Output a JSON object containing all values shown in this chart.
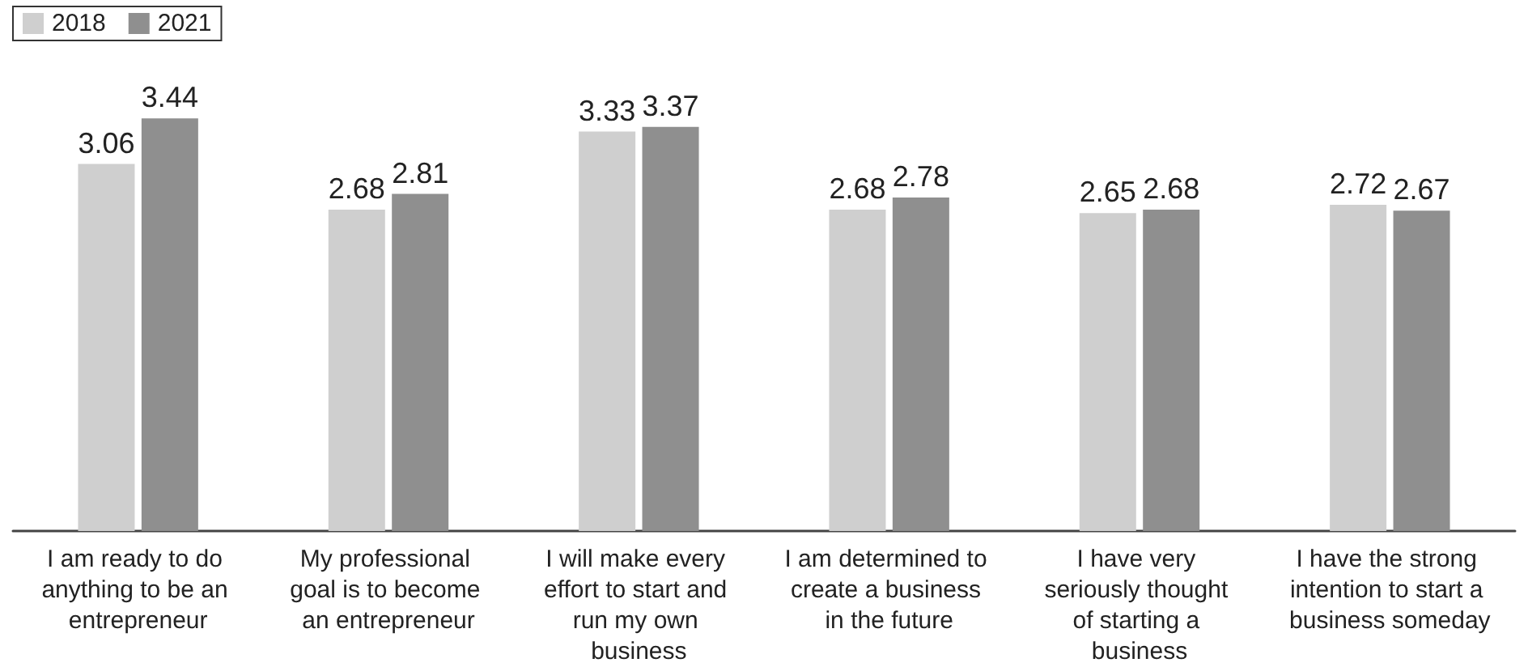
{
  "chart_data": {
    "type": "bar",
    "categories": [
      "I am ready to do anything to be an entrepreneur",
      "My professional goal is to become an entrepreneur",
      "I will make every effort to start and run my own business",
      "I am determined to create a business in the future",
      "I have very seriously thought of starting a business",
      "I have the strong intention to start a business someday"
    ],
    "series": [
      {
        "name": "2018",
        "color": "#cfcfcf",
        "values": [
          3.06,
          2.68,
          3.33,
          2.68,
          2.65,
          2.72
        ]
      },
      {
        "name": "2021",
        "color": "#8f8f8f",
        "values": [
          3.44,
          2.81,
          3.37,
          2.78,
          2.68,
          2.67
        ]
      }
    ],
    "data_labels": true,
    "legend": "top left"
  }
}
